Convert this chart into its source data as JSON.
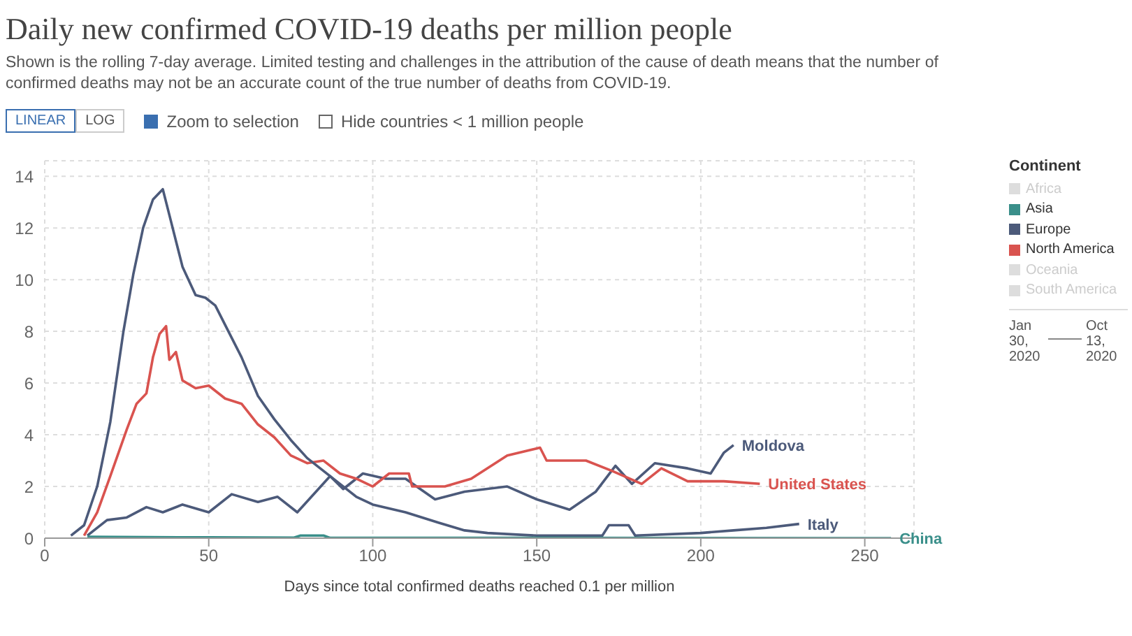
{
  "chart_data": {
    "type": "line",
    "title": "Daily new confirmed COVID-19 deaths per million people",
    "subtitle": "Shown is the rolling 7-day average. Limited testing and challenges in the attribution of the cause of death means that the number of confirmed deaths may not be an accurate count of the true number of deaths from COVID-19.",
    "xlabel": "Days since total confirmed deaths reached 0.1 per million",
    "legend_title": "Continent",
    "annotations": [
      "LINEAR",
      "LOG",
      "Zoom to selection",
      "Hide countries < 1 million people",
      "Africa",
      "Asia",
      "Europe",
      "North America",
      "Oceania",
      "South America",
      "Jan 30, 2020",
      "Oct 13, 2020"
    ],
    "series": [
      {
        "name": "Moldova",
        "color": "#4c5a7a",
        "x": [
          13,
          19,
          25,
          31,
          36,
          42,
          50,
          57,
          65,
          71,
          77,
          87,
          91,
          97,
          104,
          110,
          119,
          128,
          141,
          150,
          160,
          168,
          174,
          179,
          186,
          196,
          203,
          207,
          210
        ],
        "values": [
          0.1,
          0.7,
          0.8,
          1.2,
          1.0,
          1.3,
          1.0,
          1.7,
          1.4,
          1.6,
          1.0,
          2.4,
          1.9,
          2.5,
          2.3,
          2.3,
          1.5,
          1.8,
          2.0,
          1.5,
          1.1,
          1.8,
          2.8,
          2.1,
          2.9,
          2.7,
          2.5,
          3.3,
          3.6
        ]
      },
      {
        "name": "United States",
        "color": "#d9534f",
        "x": [
          12,
          16,
          20,
          25,
          28,
          31,
          33,
          35,
          37,
          38,
          40,
          42,
          46,
          50,
          55,
          60,
          65,
          70,
          75,
          80,
          85,
          90,
          95,
          100,
          105,
          111,
          112,
          122,
          130,
          141,
          151,
          153,
          165,
          173,
          182,
          188,
          196,
          207,
          218
        ],
        "values": [
          0.1,
          1,
          2.4,
          4.2,
          5.2,
          5.6,
          7,
          7.9,
          8.2,
          6.9,
          7.2,
          6.1,
          5.8,
          5.9,
          5.4,
          5.2,
          4.4,
          3.9,
          3.2,
          2.9,
          3.0,
          2.5,
          2.3,
          2.0,
          2.5,
          2.5,
          2.0,
          2.0,
          2.3,
          3.2,
          3.5,
          3.0,
          3.0,
          2.6,
          2.1,
          2.7,
          2.2,
          2.2,
          2.1
        ]
      },
      {
        "name": "Italy",
        "color": "#4c5a7a",
        "x": [
          8,
          12,
          16,
          20,
          24,
          27,
          30,
          33,
          36,
          38,
          42,
          46,
          49,
          52,
          56,
          60,
          65,
          70,
          75,
          80,
          85,
          90,
          95,
          100,
          110,
          120,
          128,
          135,
          150,
          170,
          172,
          178,
          180,
          200,
          210,
          220,
          230
        ],
        "values": [
          0.1,
          0.5,
          2,
          4.5,
          8,
          10.2,
          12,
          13.1,
          13.5,
          12.5,
          10.5,
          9.4,
          9.3,
          9.0,
          8,
          7,
          5.5,
          4.6,
          3.8,
          3.1,
          2.6,
          2.1,
          1.6,
          1.3,
          1.0,
          0.6,
          0.3,
          0.2,
          0.1,
          0.1,
          0.5,
          0.5,
          0.1,
          0.2,
          0.3,
          0.4,
          0.55
        ]
      },
      {
        "name": "China",
        "color": "#3a8f8a",
        "x": [
          13,
          50,
          76,
          78,
          85,
          87,
          150,
          258
        ],
        "values": [
          0.05,
          0.03,
          0.02,
          0.1,
          0.1,
          0.01,
          0.01,
          0
        ]
      }
    ],
    "xlim": [
      0,
      265
    ],
    "xticks": [
      0,
      50,
      100,
      150,
      200,
      250
    ],
    "ylim": [
      0,
      14.6
    ],
    "yticks": [
      0,
      2,
      4,
      6,
      8,
      10,
      12,
      14
    ],
    "grid": true,
    "line_style": "solid",
    "marker": "none"
  }
}
